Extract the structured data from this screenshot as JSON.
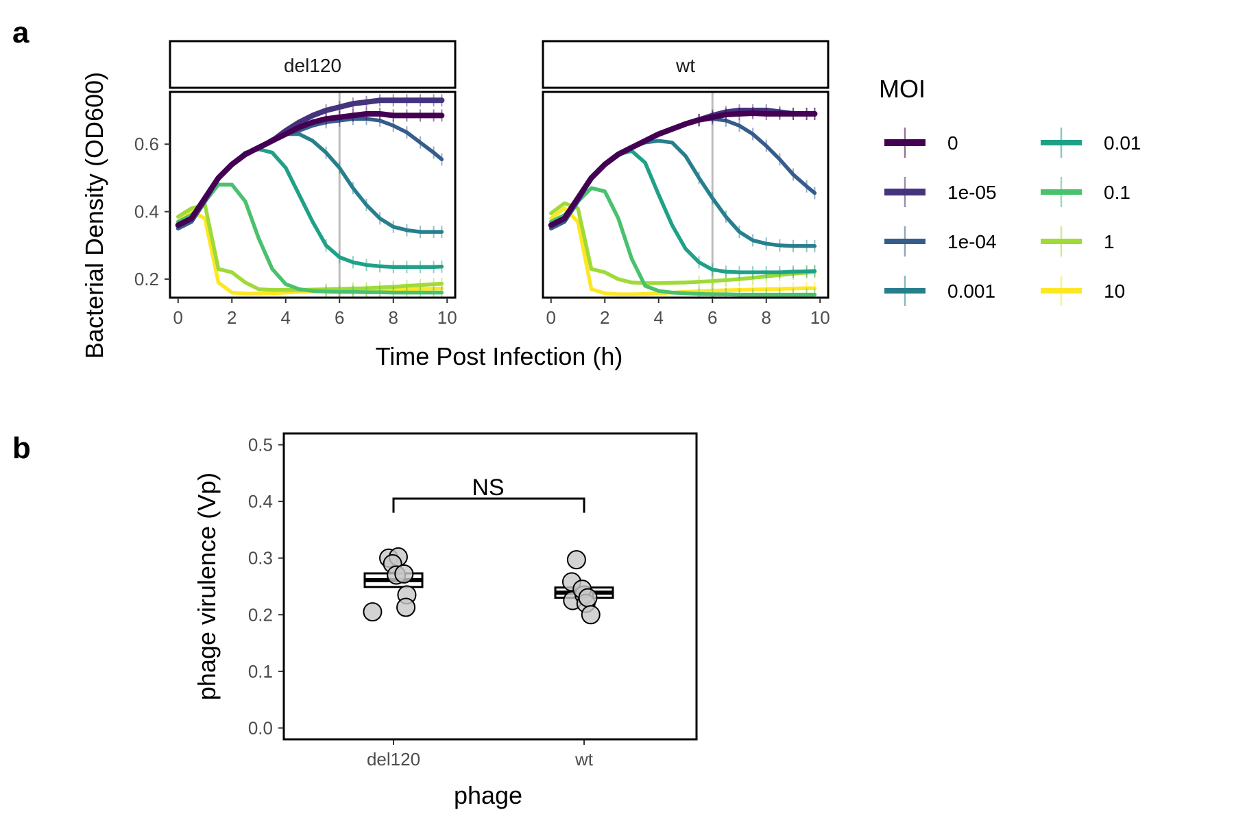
{
  "panel_labels": {
    "a": "a",
    "b": "b"
  },
  "chart_data": [
    {
      "type": "line",
      "panel": "a",
      "ylabel": "Bacterial Density (OD600)",
      "xlabel": "Time Post Infection (h)",
      "xlim": [
        -0.3,
        10.3
      ],
      "ylim": [
        0.145,
        0.755
      ],
      "x_ticks": [
        0,
        2,
        4,
        6,
        8,
        10
      ],
      "y_ticks": [
        0.2,
        0.4,
        0.6
      ],
      "y_tick_labels": [
        "0.2",
        "0.4",
        "0.6"
      ],
      "reference_line_x": 6,
      "legend": {
        "title": "MOI",
        "placement": "right",
        "columns": 2
      },
      "series_names": [
        "0",
        "1e-05",
        "1e-04",
        "0.001",
        "0.01",
        "0.1",
        "1",
        "10"
      ],
      "colors": [
        "#440154",
        "#46337E",
        "#365C8D",
        "#277F8E",
        "#1FA187",
        "#4AC16D",
        "#A0DA39",
        "#FDE725"
      ],
      "facets": [
        {
          "strip": "del120",
          "x": [
            0,
            0.5,
            1,
            1.5,
            2,
            2.5,
            3,
            3.5,
            4,
            4.5,
            5,
            5.5,
            6,
            6.5,
            7,
            7.5,
            8,
            8.5,
            9,
            9.5,
            9.8
          ],
          "series": [
            {
              "name": "0",
              "values": [
                0.36,
                0.38,
                0.44,
                0.5,
                0.54,
                0.57,
                0.59,
                0.61,
                0.63,
                0.65,
                0.665,
                0.675,
                0.68,
                0.685,
                0.69,
                0.69,
                0.685,
                0.685,
                0.685,
                0.685,
                0.685
              ]
            },
            {
              "name": "1e-05",
              "values": [
                0.36,
                0.38,
                0.44,
                0.5,
                0.54,
                0.57,
                0.59,
                0.61,
                0.64,
                0.665,
                0.685,
                0.7,
                0.71,
                0.72,
                0.725,
                0.73,
                0.73,
                0.73,
                0.73,
                0.73,
                0.73
              ]
            },
            {
              "name": "1e-04",
              "values": [
                0.35,
                0.37,
                0.43,
                0.5,
                0.54,
                0.57,
                0.59,
                0.61,
                0.63,
                0.64,
                0.655,
                0.665,
                0.67,
                0.675,
                0.675,
                0.67,
                0.655,
                0.635,
                0.605,
                0.575,
                0.555
              ]
            },
            {
              "name": "0.001",
              "values": [
                0.35,
                0.37,
                0.43,
                0.5,
                0.54,
                0.57,
                0.59,
                0.615,
                0.63,
                0.63,
                0.61,
                0.575,
                0.53,
                0.47,
                0.42,
                0.38,
                0.355,
                0.345,
                0.34,
                0.34,
                0.34
              ]
            },
            {
              "name": "0.01",
              "values": [
                0.35,
                0.37,
                0.43,
                0.5,
                0.54,
                0.575,
                0.585,
                0.575,
                0.53,
                0.45,
                0.37,
                0.3,
                0.265,
                0.25,
                0.242,
                0.238,
                0.236,
                0.236,
                0.236,
                0.236,
                0.237
              ]
            },
            {
              "name": "0.1",
              "values": [
                0.37,
                0.39,
                0.43,
                0.48,
                0.48,
                0.43,
                0.32,
                0.23,
                0.185,
                0.17,
                0.165,
                0.163,
                0.162,
                0.162,
                0.161,
                0.161,
                0.16,
                0.16,
                0.16,
                0.16,
                0.16
              ]
            },
            {
              "name": "1",
              "values": [
                0.385,
                0.41,
                0.42,
                0.23,
                0.22,
                0.19,
                0.17,
                0.168,
                0.168,
                0.168,
                0.169,
                0.17,
                0.171,
                0.172,
                0.173,
                0.175,
                0.177,
                0.18,
                0.182,
                0.185,
                0.186
              ]
            },
            {
              "name": "10",
              "values": [
                0.37,
                0.4,
                0.38,
                0.19,
                0.16,
                0.157,
                0.157,
                0.158,
                0.16,
                0.162,
                0.163,
                0.164,
                0.165,
                0.166,
                0.167,
                0.168,
                0.169,
                0.17,
                0.171,
                0.172,
                0.172
              ]
            }
          ]
        },
        {
          "strip": "wt",
          "x": [
            0,
            0.5,
            1,
            1.5,
            2,
            2.5,
            3,
            3.5,
            4,
            4.5,
            5,
            5.5,
            6,
            6.5,
            7,
            7.5,
            8,
            8.5,
            9,
            9.5,
            9.8
          ],
          "series": [
            {
              "name": "0",
              "values": [
                0.36,
                0.38,
                0.44,
                0.5,
                0.54,
                0.57,
                0.59,
                0.61,
                0.63,
                0.645,
                0.66,
                0.672,
                0.68,
                0.688,
                0.69,
                0.692,
                0.69,
                0.69,
                0.69,
                0.69,
                0.69
              ]
            },
            {
              "name": "1e-05",
              "values": [
                0.36,
                0.38,
                0.44,
                0.5,
                0.54,
                0.57,
                0.59,
                0.61,
                0.63,
                0.645,
                0.66,
                0.672,
                0.685,
                0.695,
                0.7,
                0.7,
                0.7,
                0.695,
                0.69,
                0.69,
                0.69
              ]
            },
            {
              "name": "1e-04",
              "values": [
                0.35,
                0.37,
                0.43,
                0.5,
                0.54,
                0.57,
                0.59,
                0.61,
                0.63,
                0.645,
                0.66,
                0.67,
                0.675,
                0.67,
                0.655,
                0.63,
                0.595,
                0.555,
                0.51,
                0.475,
                0.455
              ]
            },
            {
              "name": "0.001",
              "values": [
                0.35,
                0.37,
                0.43,
                0.5,
                0.54,
                0.57,
                0.59,
                0.605,
                0.61,
                0.605,
                0.565,
                0.5,
                0.44,
                0.385,
                0.34,
                0.315,
                0.305,
                0.3,
                0.298,
                0.298,
                0.298
              ]
            },
            {
              "name": "0.01",
              "values": [
                0.35,
                0.37,
                0.43,
                0.5,
                0.54,
                0.57,
                0.58,
                0.545,
                0.45,
                0.36,
                0.29,
                0.25,
                0.228,
                0.222,
                0.22,
                0.22,
                0.22,
                0.22,
                0.222,
                0.223,
                0.224
              ]
            },
            {
              "name": "0.1",
              "values": [
                0.37,
                0.39,
                0.43,
                0.47,
                0.46,
                0.38,
                0.26,
                0.18,
                0.165,
                0.16,
                0.158,
                0.156,
                0.155,
                0.155,
                0.154,
                0.154,
                0.154,
                0.154,
                0.154,
                0.154,
                0.154
              ]
            },
            {
              "name": "1",
              "values": [
                0.395,
                0.425,
                0.41,
                0.23,
                0.22,
                0.2,
                0.19,
                0.188,
                0.188,
                0.189,
                0.19,
                0.192,
                0.194,
                0.197,
                0.2,
                0.204,
                0.208,
                0.212,
                0.216,
                0.219,
                0.221
              ]
            },
            {
              "name": "10",
              "values": [
                0.38,
                0.41,
                0.37,
                0.17,
                0.158,
                0.155,
                0.155,
                0.156,
                0.158,
                0.16,
                0.162,
                0.164,
                0.166,
                0.167,
                0.168,
                0.169,
                0.17,
                0.171,
                0.172,
                0.173,
                0.173
              ]
            }
          ]
        }
      ]
    },
    {
      "type": "scatter",
      "panel": "b",
      "xlabel": "phage",
      "ylabel": "phage virulence (Vp)",
      "categories": [
        "del120",
        "wt"
      ],
      "ylim": [
        -0.02,
        0.52
      ],
      "y_ticks": [
        0,
        0.1,
        0.2,
        0.3,
        0.4,
        0.5
      ],
      "y_tick_labels": [
        "0.0",
        "0.1",
        "0.2",
        "0.3",
        "0.4",
        "0.5"
      ],
      "groups": [
        {
          "category": "del120",
          "values": [
            0.205,
            0.3,
            0.302,
            0.29,
            0.27,
            0.272,
            0.235,
            0.213
          ],
          "jitter": [
            -0.22,
            -0.05,
            0.05,
            -0.01,
            0.03,
            0.11,
            0.14,
            0.13
          ],
          "mean": 0.261,
          "se": 0.012
        },
        {
          "category": "wt",
          "values": [
            0.258,
            0.297,
            0.225,
            0.235,
            0.245,
            0.22,
            0.23,
            0.2
          ],
          "jitter": [
            -0.13,
            -0.08,
            -0.12,
            0,
            -0.02,
            0.02,
            0.04,
            0.07
          ],
          "mean": 0.239,
          "se": 0.009
        }
      ],
      "annotation": {
        "text": "NS",
        "bracket": [
          "del120",
          "wt"
        ],
        "y_bracket": 0.405,
        "y_tick_end": 0.38
      }
    }
  ]
}
